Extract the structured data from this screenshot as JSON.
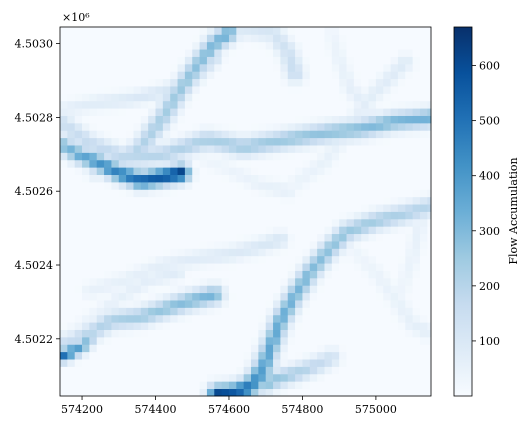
{
  "chart_data": {
    "type": "heatmap",
    "title": "",
    "xlabel": "",
    "ylabel": "",
    "y_offset_label": "×10⁶",
    "x_ticks": [
      {
        "value": 574200,
        "label": "574200"
      },
      {
        "value": 574400,
        "label": "574400"
      },
      {
        "value": 574600,
        "label": "574600"
      },
      {
        "value": 574800,
        "label": "574800"
      },
      {
        "value": 575000,
        "label": "575000"
      }
    ],
    "y_ticks": [
      {
        "value": 4502200,
        "label": "4.5022"
      },
      {
        "value": 4502400,
        "label": "4.5024"
      },
      {
        "value": 4502600,
        "label": "4.5026"
      },
      {
        "value": 4502800,
        "label": "4.5028"
      },
      {
        "value": 4503000,
        "label": "4.5030"
      }
    ],
    "xlim": [
      574140,
      575150
    ],
    "ylim": [
      4502045,
      4503045
    ],
    "colormap": "Blues",
    "colorbar": {
      "label": "Flow Accumulation",
      "range": [
        0,
        670
      ],
      "ticks": [
        {
          "value": 100,
          "label": "100"
        },
        {
          "value": 200,
          "label": "200"
        },
        {
          "value": 300,
          "label": "300"
        },
        {
          "value": 400,
          "label": "400"
        },
        {
          "value": 500,
          "label": "500"
        },
        {
          "value": 600,
          "label": "600"
        }
      ]
    },
    "channels": [
      {
        "name": "",
        "peak": 330,
        "width": 1.6,
        "points": [
          [
            574140,
            4502790
          ],
          [
            574220,
            4502730
          ],
          [
            574320,
            4502690
          ],
          [
            574420,
            4502700
          ],
          [
            574540,
            4502740
          ],
          [
            574640,
            4502720
          ],
          [
            574750,
            4502740
          ],
          [
            574870,
            4502760
          ],
          [
            574960,
            4502770
          ],
          [
            575050,
            4502790
          ],
          [
            575150,
            4502800
          ]
        ]
      },
      {
        "name": "",
        "peak": 640,
        "width": 1.5,
        "points": [
          [
            574140,
            4502730
          ],
          [
            574190,
            4502700
          ],
          [
            574240,
            4502680
          ],
          [
            574300,
            4502650
          ],
          [
            574360,
            4502630
          ],
          [
            574420,
            4502640
          ],
          [
            574470,
            4502650
          ]
        ]
      },
      {
        "name": "",
        "peak": 340,
        "width": 1.6,
        "points": [
          [
            574240,
            4502660
          ],
          [
            574320,
            4502690
          ],
          [
            574360,
            4502720
          ],
          [
            574420,
            4502800
          ],
          [
            574470,
            4502880
          ],
          [
            574520,
            4502950
          ],
          [
            574560,
            4503000
          ],
          [
            574600,
            4503030
          ]
        ]
      },
      {
        "name": "",
        "peak": 140,
        "width": 1.3,
        "points": [
          [
            574140,
            4502820
          ],
          [
            574240,
            4502840
          ],
          [
            574330,
            4502850
          ],
          [
            574420,
            4502870
          ],
          [
            574500,
            4502900
          ],
          [
            574560,
            4502960
          ]
        ]
      },
      {
        "name": "",
        "peak": 160,
        "width": 1.6,
        "points": [
          [
            574560,
            4503030
          ],
          [
            574640,
            4503040
          ],
          [
            574720,
            4503030
          ],
          [
            574760,
            4502980
          ],
          [
            574780,
            4502920
          ]
        ]
      },
      {
        "name": "",
        "peak": 430,
        "width": 1.6,
        "points": [
          [
            575150,
            4502560
          ],
          [
            575080,
            4502540
          ],
          [
            575000,
            4502520
          ],
          [
            574920,
            4502490
          ],
          [
            574870,
            4502440
          ],
          [
            574820,
            4502380
          ],
          [
            574780,
            4502320
          ],
          [
            574740,
            4502250
          ],
          [
            574710,
            4502170
          ],
          [
            574690,
            4502110
          ],
          [
            574670,
            4502075
          ],
          [
            574640,
            4502060
          ]
        ]
      },
      {
        "name": "",
        "peak": 650,
        "width": 1.7,
        "points": [
          [
            574710,
            4502170
          ],
          [
            574690,
            4502120
          ],
          [
            574670,
            4502085
          ],
          [
            574645,
            4502065
          ],
          [
            574610,
            4502052
          ],
          [
            574570,
            4502048
          ]
        ]
      },
      {
        "name": "",
        "peak": 300,
        "width": 1.5,
        "points": [
          [
            574880,
            4502150
          ],
          [
            574840,
            4502130
          ],
          [
            574790,
            4502110
          ],
          [
            574740,
            4502095
          ],
          [
            574700,
            4502080
          ]
        ]
      },
      {
        "name": "",
        "peak": 560,
        "width": 1.2,
        "points": [
          [
            574220,
            4502200
          ],
          [
            574200,
            4502180
          ],
          [
            574160,
            4502160
          ],
          [
            574140,
            4502155
          ]
        ]
      },
      {
        "name": "",
        "peak": 320,
        "width": 1.6,
        "points": [
          [
            574140,
            4502185
          ],
          [
            574180,
            4502195
          ],
          [
            574220,
            4502215
          ],
          [
            574280,
            4502250
          ],
          [
            574360,
            4502260
          ],
          [
            574420,
            4502280
          ],
          [
            574480,
            4502300
          ],
          [
            574560,
            4502320
          ]
        ]
      },
      {
        "name": "",
        "peak": 110,
        "width": 1.4,
        "points": [
          [
            574220,
            4502330
          ],
          [
            574320,
            4502360
          ],
          [
            574420,
            4502400
          ],
          [
            574520,
            4502420
          ],
          [
            574600,
            4502430
          ],
          [
            574680,
            4502450
          ],
          [
            574740,
            4502470
          ]
        ]
      },
      {
        "name": "",
        "peak": 90,
        "width": 1.4,
        "points": [
          [
            574780,
            4502620
          ],
          [
            574860,
            4502680
          ],
          [
            574920,
            4502760
          ],
          [
            574980,
            4502850
          ],
          [
            575030,
            4502900
          ],
          [
            575080,
            4502950
          ]
        ]
      },
      {
        "name": "",
        "peak": 80,
        "width": 1.3,
        "points": [
          [
            574150,
            4502200
          ],
          [
            574220,
            4502250
          ],
          [
            574300,
            4502310
          ],
          [
            574380,
            4502360
          ],
          [
            574460,
            4502380
          ]
        ]
      },
      {
        "name": "",
        "peak": 70,
        "width": 1.4,
        "points": [
          [
            574940,
            4502440
          ],
          [
            575000,
            4502380
          ],
          [
            575060,
            4502300
          ],
          [
            575100,
            4502240
          ],
          [
            575140,
            4502220
          ]
        ]
      },
      {
        "name": "",
        "peak": 75,
        "width": 1.3,
        "points": [
          [
            574880,
            4503030
          ],
          [
            574900,
            4502960
          ],
          [
            574930,
            4502880
          ],
          [
            574980,
            4502820
          ]
        ]
      },
      {
        "name": "",
        "peak": 60,
        "width": 1.3,
        "points": [
          [
            574500,
            4502700
          ],
          [
            574600,
            4502660
          ],
          [
            574680,
            4502620
          ],
          [
            574760,
            4502600
          ]
        ]
      },
      {
        "name": "",
        "peak": 65,
        "width": 1.3,
        "points": [
          [
            575060,
            4502300
          ],
          [
            575100,
            4502420
          ],
          [
            575130,
            4502560
          ]
        ]
      }
    ]
  }
}
